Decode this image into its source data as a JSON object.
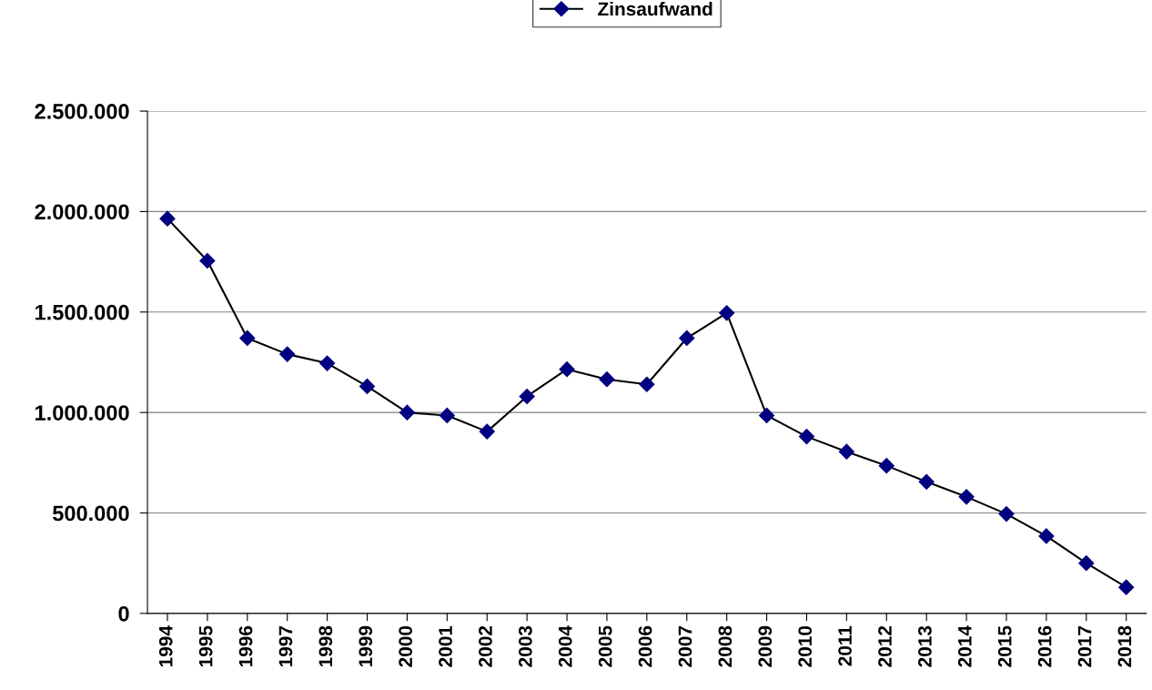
{
  "chart_data": {
    "type": "line",
    "categories": [
      "1994",
      "1995",
      "1996",
      "1997",
      "1998",
      "1999",
      "2000",
      "2001",
      "2002",
      "2003",
      "2004",
      "2005",
      "2006",
      "2007",
      "2008",
      "2009",
      "2010",
      "2011",
      "2012",
      "2013",
      "2014",
      "2015",
      "2016",
      "2017",
      "2018"
    ],
    "series": [
      {
        "name": "Zinsaufwand",
        "color": "#000080",
        "values": [
          1965000,
          1755000,
          1370000,
          1290000,
          1245000,
          1130000,
          1000000,
          985000,
          905000,
          1080000,
          1215000,
          1165000,
          1140000,
          1370000,
          1495000,
          985000,
          880000,
          805000,
          735000,
          655000,
          580000,
          495000,
          385000,
          250000,
          130000
        ]
      }
    ],
    "ylim": [
      0,
      2500000
    ],
    "yticks": [
      0,
      {
        "value": 500000,
        "label": "500.000"
      },
      {
        "value": 1000000,
        "label": "1.000.000"
      },
      {
        "value": 1500000,
        "label": "1.500.000"
      },
      {
        "value": 2000000,
        "label": "2.000.000"
      },
      {
        "value": 2500000,
        "label": "2.500.000"
      }
    ],
    "grid": "y",
    "legend": "top",
    "marker": "diamond",
    "line_style": "solid"
  }
}
